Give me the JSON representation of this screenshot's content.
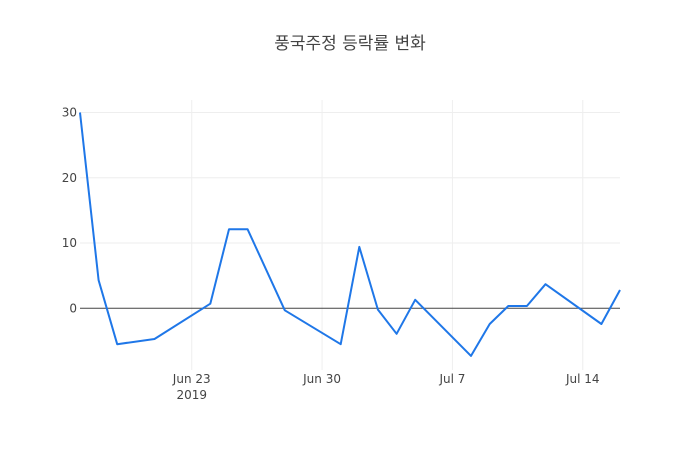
{
  "chart_data": {
    "type": "line",
    "title": "풍국주정 등락률 변화",
    "xlabel": "",
    "ylabel": "",
    "x": [
      "2019-06-17",
      "2019-06-18",
      "2019-06-19",
      "2019-06-21",
      "2019-06-24",
      "2019-06-25",
      "2019-06-26",
      "2019-06-28",
      "2019-07-01",
      "2019-07-02",
      "2019-07-03",
      "2019-07-04",
      "2019-07-05",
      "2019-07-08",
      "2019-07-09",
      "2019-07-10",
      "2019-07-11",
      "2019-07-12",
      "2019-07-15",
      "2019-07-16"
    ],
    "series": [
      {
        "values": [
          30.0,
          4.3,
          -5.5,
          -4.7,
          0.7,
          12.1,
          12.1,
          -0.3,
          -5.5,
          9.4,
          -0.2,
          -3.9,
          1.3,
          -7.3,
          -2.4,
          0.35,
          0.35,
          3.7,
          -2.4,
          2.8
        ],
        "color": "#1f77e8"
      }
    ],
    "xlim": [
      "2019-06-17",
      "2019-07-16"
    ],
    "ylim": [
      -9,
      32
    ],
    "x_ticks": [
      {
        "date": "2019-06-23",
        "label": "Jun 23",
        "sublabel": "2019"
      },
      {
        "date": "2019-06-30",
        "label": "Jun 30",
        "sublabel": ""
      },
      {
        "date": "2019-07-07",
        "label": "Jul 7",
        "sublabel": ""
      },
      {
        "date": "2019-07-14",
        "label": "Jul 14",
        "sublabel": ""
      }
    ],
    "y_ticks": [
      0,
      10,
      20,
      30
    ],
    "grid": true,
    "zero_line": true
  }
}
